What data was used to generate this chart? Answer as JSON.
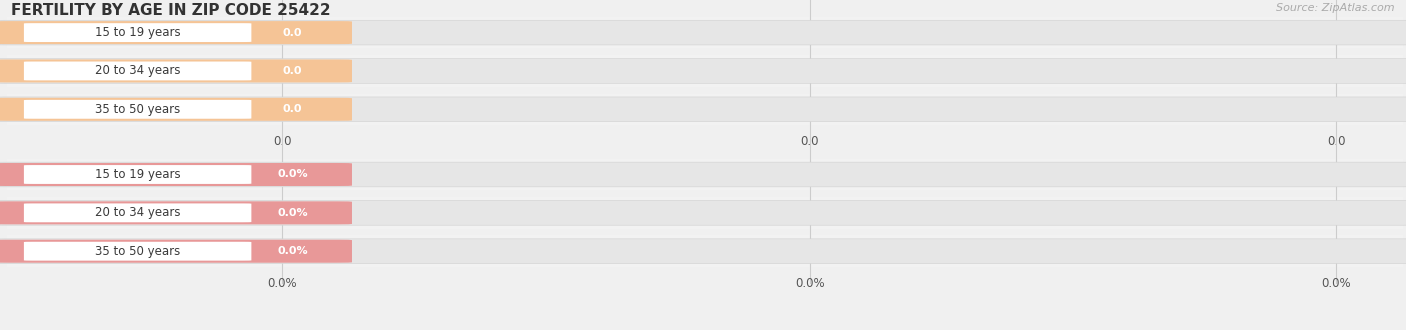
{
  "title": "FERTILITY BY AGE IN ZIP CODE 25422",
  "source": "Source: ZipAtlas.com",
  "fig_bg": "#f0f0f0",
  "top_section": {
    "categories": [
      "15 to 19 years",
      "20 to 34 years",
      "35 to 50 years"
    ],
    "values": [
      0.0,
      0.0,
      0.0
    ],
    "pill_color": "#f5c496",
    "x_tick_labels": [
      "0.0",
      "0.0",
      "0.0"
    ],
    "is_percent": false
  },
  "bottom_section": {
    "categories": [
      "15 to 19 years",
      "20 to 34 years",
      "35 to 50 years"
    ],
    "values": [
      0.0,
      0.0,
      0.0
    ],
    "pill_color": "#e89898",
    "x_tick_labels": [
      "0.0%",
      "0.0%",
      "0.0%"
    ],
    "is_percent": true
  },
  "fig_width": 14.06,
  "fig_height": 3.3,
  "dpi": 100
}
